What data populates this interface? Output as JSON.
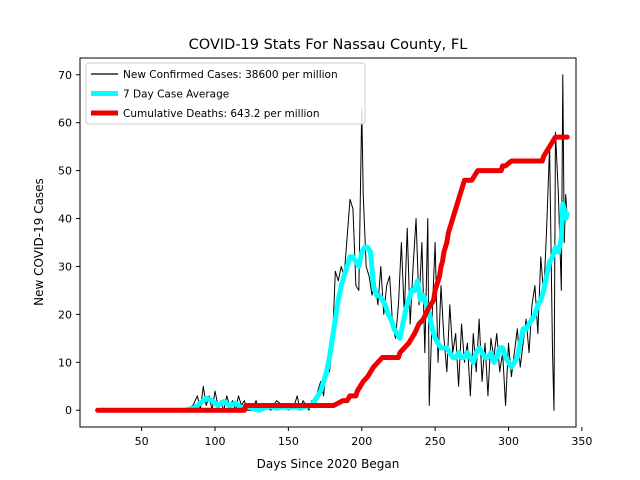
{
  "chart_data": {
    "type": "line",
    "title": "COVID-19 Stats For Nassau County, FL",
    "xlabel": "Days Since 2020 Began",
    "ylabel": "New COVID-19 Cases",
    "xlim": [
      8,
      346
    ],
    "ylim": [
      -3.5,
      73.5
    ],
    "xticks": [
      50,
      100,
      150,
      200,
      250,
      300,
      350
    ],
    "yticks": [
      0,
      10,
      20,
      30,
      40,
      50,
      60,
      70
    ],
    "grid": false,
    "legend_position": "top-left",
    "series": [
      {
        "name": "New Confirmed Cases: 38600 per million",
        "color": "#000000",
        "style": "thin",
        "points": [
          [
            20,
            0
          ],
          [
            70,
            0
          ],
          [
            80,
            0
          ],
          [
            85,
            1
          ],
          [
            88,
            3
          ],
          [
            90,
            0
          ],
          [
            92,
            5
          ],
          [
            94,
            1
          ],
          [
            96,
            3
          ],
          [
            98,
            0
          ],
          [
            100,
            4
          ],
          [
            102,
            1
          ],
          [
            104,
            2
          ],
          [
            106,
            0
          ],
          [
            108,
            3
          ],
          [
            110,
            1
          ],
          [
            112,
            2
          ],
          [
            114,
            0
          ],
          [
            116,
            3
          ],
          [
            118,
            1
          ],
          [
            120,
            2
          ],
          [
            122,
            0
          ],
          [
            125,
            0
          ],
          [
            128,
            2
          ],
          [
            130,
            0
          ],
          [
            134,
            1
          ],
          [
            138,
            0
          ],
          [
            142,
            2
          ],
          [
            146,
            1
          ],
          [
            150,
            0
          ],
          [
            154,
            1
          ],
          [
            156,
            3
          ],
          [
            158,
            0
          ],
          [
            160,
            2
          ],
          [
            162,
            1
          ],
          [
            164,
            0
          ],
          [
            166,
            2
          ],
          [
            168,
            1
          ],
          [
            170,
            4
          ],
          [
            172,
            6
          ],
          [
            174,
            3
          ],
          [
            176,
            10
          ],
          [
            178,
            8
          ],
          [
            180,
            14
          ],
          [
            182,
            29
          ],
          [
            184,
            27
          ],
          [
            186,
            30
          ],
          [
            188,
            28
          ],
          [
            190,
            36
          ],
          [
            192,
            44
          ],
          [
            194,
            42
          ],
          [
            196,
            26
          ],
          [
            198,
            25
          ],
          [
            200,
            63
          ],
          [
            201,
            45
          ],
          [
            203,
            30
          ],
          [
            205,
            28
          ],
          [
            207,
            24
          ],
          [
            209,
            27
          ],
          [
            211,
            22
          ],
          [
            213,
            30
          ],
          [
            215,
            20
          ],
          [
            217,
            26
          ],
          [
            219,
            28
          ],
          [
            221,
            18
          ],
          [
            223,
            15
          ],
          [
            225,
            22
          ],
          [
            227,
            35
          ],
          [
            229,
            20
          ],
          [
            231,
            38
          ],
          [
            233,
            18
          ],
          [
            235,
            30
          ],
          [
            237,
            40
          ],
          [
            239,
            22
          ],
          [
            241,
            35
          ],
          [
            243,
            12
          ],
          [
            245,
            40
          ],
          [
            246,
            1
          ],
          [
            248,
            20
          ],
          [
            250,
            35
          ],
          [
            252,
            10
          ],
          [
            254,
            26
          ],
          [
            256,
            15
          ],
          [
            258,
            8
          ],
          [
            260,
            22
          ],
          [
            262,
            12
          ],
          [
            264,
            16
          ],
          [
            266,
            5
          ],
          [
            268,
            18
          ],
          [
            270,
            10
          ],
          [
            272,
            14
          ],
          [
            274,
            3
          ],
          [
            276,
            16
          ],
          [
            278,
            8
          ],
          [
            280,
            19
          ],
          [
            282,
            6
          ],
          [
            284,
            14
          ],
          [
            286,
            3
          ],
          [
            288,
            15
          ],
          [
            290,
            11
          ],
          [
            292,
            16
          ],
          [
            294,
            8
          ],
          [
            296,
            12
          ],
          [
            298,
            1
          ],
          [
            300,
            14
          ],
          [
            302,
            7
          ],
          [
            304,
            12
          ],
          [
            306,
            17
          ],
          [
            308,
            9
          ],
          [
            310,
            14
          ],
          [
            312,
            19
          ],
          [
            314,
            12
          ],
          [
            316,
            22
          ],
          [
            318,
            26
          ],
          [
            320,
            16
          ],
          [
            322,
            32
          ],
          [
            324,
            24
          ],
          [
            326,
            38
          ],
          [
            328,
            55
          ],
          [
            330,
            12
          ],
          [
            331,
            0
          ],
          [
            332,
            58
          ],
          [
            334,
            45
          ],
          [
            336,
            25
          ],
          [
            337,
            70
          ],
          [
            338,
            35
          ],
          [
            339,
            45
          ],
          [
            340,
            40
          ]
        ]
      },
      {
        "name": "7 Day Case Average",
        "color": "#00ffff",
        "style": "thick",
        "points": [
          [
            80,
            0
          ],
          [
            86,
            0.5
          ],
          [
            90,
            1.5
          ],
          [
            94,
            2.5
          ],
          [
            98,
            2
          ],
          [
            102,
            1
          ],
          [
            106,
            1.8
          ],
          [
            110,
            1
          ],
          [
            114,
            1.5
          ],
          [
            118,
            0.5
          ],
          [
            122,
            0.8
          ],
          [
            126,
            0.3
          ],
          [
            130,
            0
          ],
          [
            134,
            0.5
          ],
          [
            138,
            0.8
          ],
          [
            142,
            0.4
          ],
          [
            146,
            0.7
          ],
          [
            150,
            0.5
          ],
          [
            154,
            0.8
          ],
          [
            158,
            0.4
          ],
          [
            162,
            0.8
          ],
          [
            166,
            1
          ],
          [
            168,
            2
          ],
          [
            170,
            3
          ],
          [
            172,
            4
          ],
          [
            174,
            6
          ],
          [
            176,
            8
          ],
          [
            178,
            11
          ],
          [
            180,
            15
          ],
          [
            182,
            19
          ],
          [
            184,
            23
          ],
          [
            186,
            26
          ],
          [
            188,
            28
          ],
          [
            190,
            30
          ],
          [
            192,
            32
          ],
          [
            194,
            32
          ],
          [
            196,
            31
          ],
          [
            198,
            30
          ],
          [
            200,
            33
          ],
          [
            202,
            34
          ],
          [
            204,
            34
          ],
          [
            206,
            33
          ],
          [
            208,
            26
          ],
          [
            210,
            24
          ],
          [
            212,
            24
          ],
          [
            214,
            23
          ],
          [
            216,
            22
          ],
          [
            218,
            20
          ],
          [
            220,
            19
          ],
          [
            222,
            17
          ],
          [
            224,
            16
          ],
          [
            226,
            15
          ],
          [
            228,
            18
          ],
          [
            230,
            21
          ],
          [
            232,
            23
          ],
          [
            234,
            25
          ],
          [
            236,
            25
          ],
          [
            238,
            27
          ],
          [
            240,
            23
          ],
          [
            242,
            24
          ],
          [
            244,
            22
          ],
          [
            246,
            20
          ],
          [
            248,
            17
          ],
          [
            250,
            15
          ],
          [
            252,
            14
          ],
          [
            254,
            13
          ],
          [
            256,
            13
          ],
          [
            258,
            13
          ],
          [
            260,
            12
          ],
          [
            262,
            11
          ],
          [
            264,
            11
          ],
          [
            266,
            12
          ],
          [
            268,
            11
          ],
          [
            270,
            11
          ],
          [
            272,
            12
          ],
          [
            274,
            11
          ],
          [
            276,
            10
          ],
          [
            278,
            12
          ],
          [
            280,
            13
          ],
          [
            282,
            12
          ],
          [
            284,
            11
          ],
          [
            286,
            11
          ],
          [
            288,
            12
          ],
          [
            290,
            10
          ],
          [
            292,
            11
          ],
          [
            294,
            13
          ],
          [
            296,
            13
          ],
          [
            298,
            11
          ],
          [
            300,
            10
          ],
          [
            302,
            9
          ],
          [
            304,
            10
          ],
          [
            306,
            11
          ],
          [
            308,
            14
          ],
          [
            310,
            17
          ],
          [
            312,
            17
          ],
          [
            314,
            18
          ],
          [
            316,
            19
          ],
          [
            318,
            20
          ],
          [
            320,
            22
          ],
          [
            322,
            23
          ],
          [
            324,
            25
          ],
          [
            326,
            28
          ],
          [
            328,
            31
          ],
          [
            330,
            32
          ],
          [
            332,
            34
          ],
          [
            334,
            33
          ],
          [
            336,
            36
          ],
          [
            337,
            43
          ],
          [
            338,
            42
          ],
          [
            339,
            40
          ],
          [
            340,
            41
          ]
        ]
      },
      {
        "name": "Cumulative Deaths: 643.2 per million",
        "color": "#ee0000",
        "style": "thick",
        "points": [
          [
            20,
            0
          ],
          [
            120,
            0
          ],
          [
            121,
            1
          ],
          [
            180,
            1
          ],
          [
            181,
            1
          ],
          [
            187,
            2
          ],
          [
            190,
            2
          ],
          [
            192,
            3
          ],
          [
            196,
            3
          ],
          [
            197,
            4
          ],
          [
            199,
            5
          ],
          [
            201,
            6
          ],
          [
            204,
            7
          ],
          [
            206,
            8
          ],
          [
            208,
            9
          ],
          [
            211,
            10
          ],
          [
            214,
            11
          ],
          [
            225,
            11
          ],
          [
            226,
            12
          ],
          [
            229,
            13
          ],
          [
            232,
            14
          ],
          [
            236,
            16
          ],
          [
            239,
            18
          ],
          [
            242,
            19
          ],
          [
            245,
            21
          ],
          [
            247,
            22
          ],
          [
            249,
            23
          ],
          [
            250,
            25
          ],
          [
            252,
            27
          ],
          [
            253,
            28
          ],
          [
            254,
            30
          ],
          [
            255,
            31
          ],
          [
            256,
            33
          ],
          [
            258,
            35
          ],
          [
            259,
            37
          ],
          [
            261,
            39
          ],
          [
            263,
            41
          ],
          [
            265,
            43
          ],
          [
            267,
            45
          ],
          [
            269,
            47
          ],
          [
            270,
            48
          ],
          [
            275,
            48
          ],
          [
            277,
            49
          ],
          [
            279,
            50
          ],
          [
            295,
            50
          ],
          [
            296,
            51
          ],
          [
            298,
            51
          ],
          [
            302,
            52
          ],
          [
            323,
            52
          ],
          [
            324,
            53
          ],
          [
            326,
            54
          ],
          [
            328,
            55
          ],
          [
            330,
            56
          ],
          [
            332,
            57
          ],
          [
            340,
            57
          ]
        ]
      }
    ]
  }
}
